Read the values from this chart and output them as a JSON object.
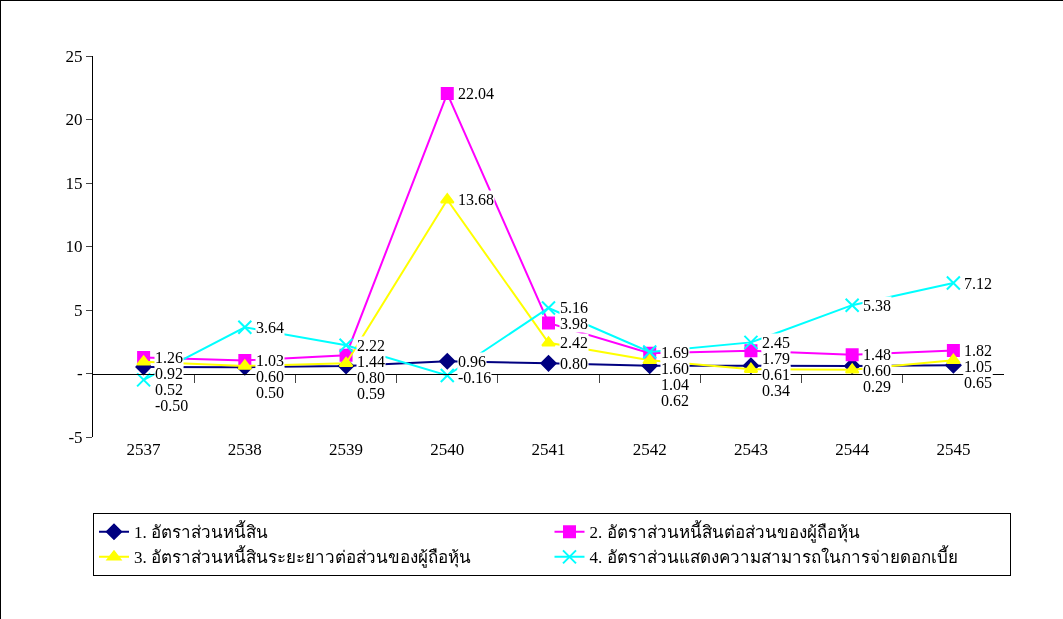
{
  "chart_data": {
    "type": "line",
    "categories": [
      "2537",
      "2538",
      "2539",
      "2540",
      "2541",
      "2542",
      "2543",
      "2544",
      "2545"
    ],
    "series": [
      {
        "name": "1. อัตราส่วนหนี้สิน",
        "color": "#000080",
        "marker": "diamond",
        "values": [
          0.52,
          0.5,
          0.59,
          0.96,
          0.8,
          0.62,
          0.61,
          0.6,
          0.65
        ],
        "value_labels": [
          "0.52",
          "0.50",
          "0.59",
          "0.96",
          "0.80",
          "0.62",
          "0.61",
          "0.60",
          "0.65"
        ]
      },
      {
        "name": "2. อัตราส่วนหนี้สินต่อส่วนของผู้ถือหุ้น",
        "color": "#ff00ff",
        "marker": "square",
        "values": [
          1.26,
          1.03,
          1.44,
          22.04,
          3.98,
          1.6,
          1.79,
          1.48,
          1.82
        ],
        "value_labels": [
          "1.26",
          "1.03",
          "1.44",
          "22.04",
          "3.98",
          "1.60",
          "1.79",
          "1.48",
          "1.82"
        ]
      },
      {
        "name": "3. อัตราส่วนหนี้สินระยะยาวต่อส่วนของผู้ถือหุ้น",
        "color": "#ffff00",
        "marker": "triangle",
        "values": [
          0.92,
          0.6,
          0.8,
          13.68,
          2.42,
          1.04,
          0.34,
          0.29,
          1.05
        ],
        "value_labels": [
          "0.92",
          "0.60",
          "0.80",
          "13.68",
          "2.42",
          "1.04",
          "0.34",
          "0.29",
          "1.05"
        ]
      },
      {
        "name": "4. อัตราส่วนแสดงความสามารถในการจ่ายดอกเบี้ย",
        "color": "#00ffff",
        "marker": "cross",
        "values": [
          -0.5,
          3.64,
          2.22,
          -0.16,
          5.16,
          1.69,
          2.45,
          5.38,
          7.12
        ],
        "value_labels": [
          "-0.50",
          "3.64",
          "2.22",
          "-0.16",
          "5.16",
          "1.69",
          "2.45",
          "5.38",
          "7.12"
        ]
      }
    ],
    "ylim": [
      -5,
      25
    ],
    "yticks": [
      -5,
      {
        "value": 0,
        "label": "-"
      },
      5,
      10,
      15,
      20,
      25
    ],
    "legend": "bottom"
  }
}
